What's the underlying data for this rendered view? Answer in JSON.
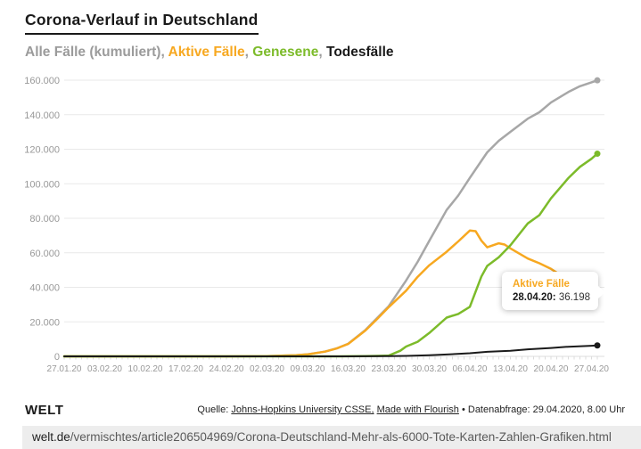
{
  "header": {
    "title": "Corona-Verlauf in Deutschland",
    "legend": [
      {
        "label": "Alle Fälle (kumuliert)",
        "color": "#9b9b9b"
      },
      {
        "label": "Aktive Fälle",
        "color": "#f7a820"
      },
      {
        "label": "Genesene",
        "color": "#7cbb2a"
      },
      {
        "label": "Todesfälle",
        "color": "#1a1a1a"
      }
    ],
    "separator": ", ",
    "separator_color": "#9b9b9b"
  },
  "chart_data": {
    "type": "line",
    "title": "Corona-Verlauf in Deutschland",
    "xlabel": "",
    "ylabel": "",
    "grid": true,
    "legend_position": "subtitle-top",
    "x_axis": {
      "unit": "days since 27.01.20",
      "day_range": [
        0,
        92
      ],
      "tick_days": [
        0,
        7,
        14,
        21,
        28,
        35,
        42,
        49,
        56,
        63,
        70,
        77,
        84,
        91
      ],
      "tick_labels": [
        "27.01.20",
        "03.02.20",
        "10.02.20",
        "17.02.20",
        "24.02.20",
        "02.03.20",
        "09.03.20",
        "16.03.20",
        "23.03.20",
        "30.03.20",
        "06.04.20",
        "13.04.20",
        "20.04.20",
        "27.04.20"
      ]
    },
    "y_axis": {
      "range": [
        0,
        160000
      ],
      "ticks": [
        0,
        20000,
        40000,
        60000,
        80000,
        100000,
        120000,
        140000,
        160000
      ],
      "tick_labels": [
        "0",
        "20.000",
        "40.000",
        "60.000",
        "80.000",
        "100.000",
        "120.000",
        "140.000",
        "160.000"
      ]
    },
    "series": [
      {
        "name": "Alle Fälle (kumuliert)",
        "color": "#a7a7a7",
        "stroke_width": 2.5,
        "points": [
          [
            0,
            1
          ],
          [
            4,
            4
          ],
          [
            7,
            12
          ],
          [
            10,
            13
          ],
          [
            14,
            14
          ],
          [
            18,
            16
          ],
          [
            21,
            16
          ],
          [
            25,
            16
          ],
          [
            28,
            16
          ],
          [
            31,
            46
          ],
          [
            33,
            79
          ],
          [
            35,
            159
          ],
          [
            38,
            482
          ],
          [
            40,
            670
          ],
          [
            42,
            1176
          ],
          [
            45,
            2745
          ],
          [
            47,
            4585
          ],
          [
            49,
            7272
          ],
          [
            52,
            15320
          ],
          [
            54,
            22213
          ],
          [
            56,
            29056
          ],
          [
            59,
            43938
          ],
          [
            61,
            54774
          ],
          [
            63,
            66885
          ],
          [
            66,
            84794
          ],
          [
            68,
            93157
          ],
          [
            70,
            103374
          ],
          [
            72,
            113296
          ],
          [
            73,
            118181
          ],
          [
            75,
            124908
          ],
          [
            77,
            130072
          ],
          [
            80,
            137698
          ],
          [
            82,
            141397
          ],
          [
            84,
            147065
          ],
          [
            87,
            153129
          ],
          [
            89,
            156513
          ],
          [
            91,
            158758
          ],
          [
            92,
            159912
          ]
        ]
      },
      {
        "name": "Aktive Fälle",
        "color": "#f7a820",
        "stroke_width": 2.5,
        "points": [
          [
            0,
            1
          ],
          [
            4,
            4
          ],
          [
            7,
            12
          ],
          [
            10,
            13
          ],
          [
            14,
            14
          ],
          [
            18,
            16
          ],
          [
            21,
            16
          ],
          [
            25,
            16
          ],
          [
            28,
            16
          ],
          [
            31,
            44
          ],
          [
            33,
            77
          ],
          [
            35,
            143
          ],
          [
            38,
            464
          ],
          [
            40,
            652
          ],
          [
            42,
            1152
          ],
          [
            45,
            2713
          ],
          [
            47,
            4530
          ],
          [
            49,
            7188
          ],
          [
            52,
            15024
          ],
          [
            54,
            21626
          ],
          [
            56,
            28480
          ],
          [
            59,
            38064
          ],
          [
            61,
            46103
          ],
          [
            63,
            52740
          ],
          [
            66,
            60582
          ],
          [
            68,
            66561
          ],
          [
            70,
            72864
          ],
          [
            71,
            72525
          ],
          [
            72,
            67000
          ],
          [
            73,
            63167
          ],
          [
            75,
            65491
          ],
          [
            76,
            64772
          ],
          [
            77,
            62578
          ],
          [
            80,
            56646
          ],
          [
            82,
            53931
          ],
          [
            84,
            50703
          ],
          [
            87,
            44254
          ],
          [
            89,
            41143
          ],
          [
            91,
            38132
          ],
          [
            92,
            36198
          ]
        ]
      },
      {
        "name": "Genesene",
        "color": "#7cbb2a",
        "stroke_width": 2.5,
        "points": [
          [
            0,
            0
          ],
          [
            7,
            0
          ],
          [
            14,
            0
          ],
          [
            18,
            14
          ],
          [
            21,
            14
          ],
          [
            28,
            14
          ],
          [
            35,
            16
          ],
          [
            42,
            18
          ],
          [
            46,
            25
          ],
          [
            49,
            67
          ],
          [
            52,
            113
          ],
          [
            54,
            233
          ],
          [
            56,
            453
          ],
          [
            58,
            3243
          ],
          [
            59,
            5673
          ],
          [
            61,
            8481
          ],
          [
            63,
            13500
          ],
          [
            66,
            22440
          ],
          [
            68,
            24575
          ],
          [
            70,
            28700
          ],
          [
            72,
            46300
          ],
          [
            73,
            52407
          ],
          [
            75,
            57400
          ],
          [
            77,
            64300
          ],
          [
            80,
            77000
          ],
          [
            82,
            81800
          ],
          [
            84,
            91500
          ],
          [
            87,
            103300
          ],
          [
            89,
            109800
          ],
          [
            91,
            114500
          ],
          [
            92,
            117400
          ]
        ]
      },
      {
        "name": "Todesfälle",
        "color": "#1a1a1a",
        "stroke_width": 2,
        "points": [
          [
            0,
            0
          ],
          [
            14,
            0
          ],
          [
            28,
            0
          ],
          [
            35,
            0
          ],
          [
            42,
            2
          ],
          [
            45,
            6
          ],
          [
            49,
            17
          ],
          [
            52,
            44
          ],
          [
            56,
            123
          ],
          [
            59,
            267
          ],
          [
            63,
            645
          ],
          [
            66,
            1107
          ],
          [
            70,
            1810
          ],
          [
            73,
            2607
          ],
          [
            77,
            3194
          ],
          [
            80,
            4052
          ],
          [
            84,
            4862
          ],
          [
            87,
            5575
          ],
          [
            91,
            6126
          ],
          [
            92,
            6314
          ]
        ]
      }
    ],
    "tooltip": {
      "series": "Aktive Fälle",
      "series_color": "#f7a820",
      "date_label": "28.04.20:",
      "value": "36.198"
    }
  },
  "footer": {
    "logo": "WELT",
    "source_prefix": "Quelle: ",
    "source_link1": "Johns-Hopkins University CSSE,",
    "source_link2": "Made with Flourish",
    "source_suffix": " • Datenabfrage: 29.04.2020, 8.00 Uhr"
  },
  "url_bar": {
    "domain": "welt.de",
    "path": "/vermischtes/article206504969/Corona-Deutschland-Mehr-als-6000-Tote-Karten-Zahlen-Grafiken.html"
  }
}
